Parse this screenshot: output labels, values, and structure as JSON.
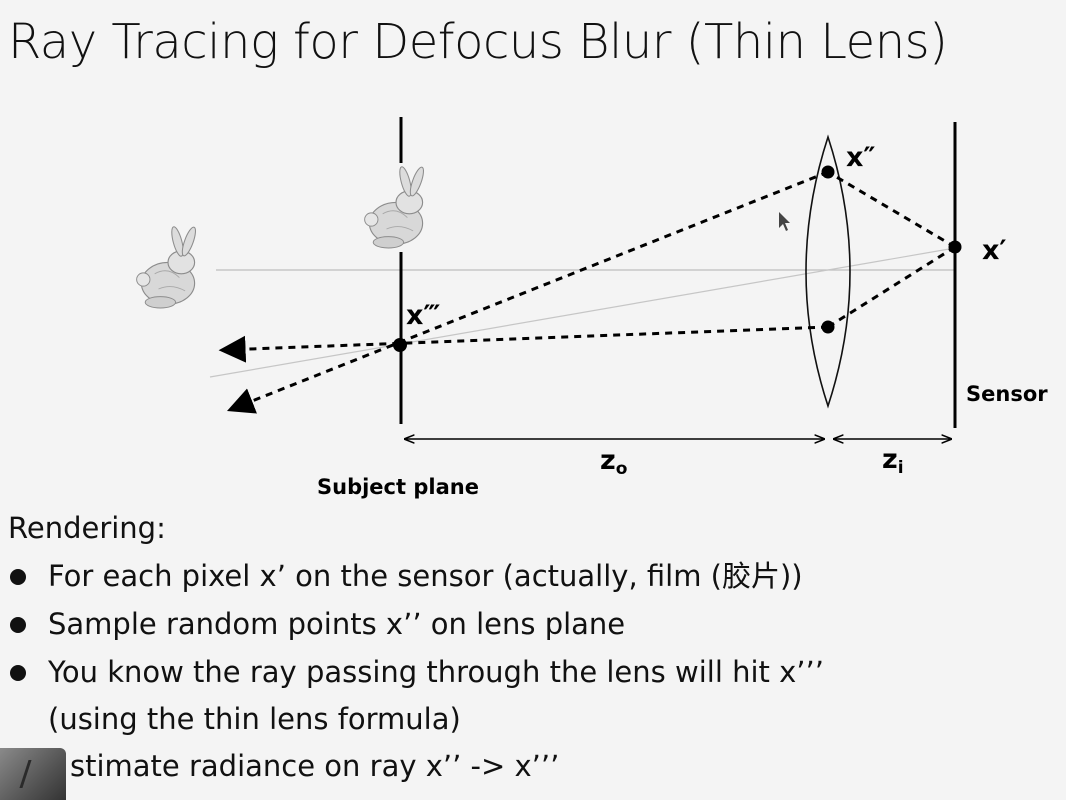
{
  "title": "Ray Tracing for Defocus Blur (Thin Lens)",
  "diagram": {
    "labels": {
      "x_double_prime": "x″",
      "x_prime": "x′",
      "x_triple_prime": "x‴",
      "sensor": "Sensor",
      "subject_plane": "Subject plane",
      "z_o_main": "z",
      "z_o_sub": "o",
      "z_i_main": "z",
      "z_i_sub": "i"
    }
  },
  "body": {
    "heading": "Rendering:",
    "bullets": [
      {
        "text": "For each pixel x’ on the sensor (actually, film (胶片))"
      },
      {
        "text": "Sample random points x’’ on lens plane"
      },
      {
        "text": "You know the ray passing through the lens will hit x’’’",
        "cont": "(using the thin lens formula)"
      },
      {
        "text": "stimate radiance on ray x’’ -> x’’’"
      }
    ]
  },
  "colors": {
    "background": "#f4f4f4",
    "ink": "#111111",
    "guide_line": "#bdbdbd",
    "bunny": "#d9d9d9"
  },
  "icons": [
    "bunny-icon",
    "arrow-head-icon",
    "cursor-icon",
    "video-thumbnail"
  ]
}
